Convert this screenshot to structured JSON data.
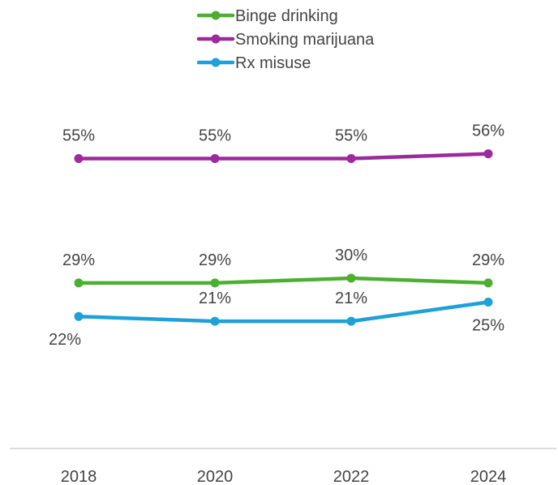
{
  "chart_data": {
    "type": "line",
    "title": "",
    "xlabel": "",
    "ylabel": "",
    "categories": [
      "2018",
      "2020",
      "2022",
      "2024"
    ],
    "legend_position": "top-center",
    "grid": false,
    "ylim": [
      0,
      65
    ],
    "series": [
      {
        "name": "Binge drinking",
        "color": "#4caf32",
        "values": [
          29,
          29,
          30,
          29
        ],
        "labels": [
          "29%",
          "29%",
          "30%",
          "29%"
        ]
      },
      {
        "name": "Smoking marijuana",
        "color": "#9c2a9c",
        "values": [
          55,
          55,
          55,
          56
        ],
        "labels": [
          "55%",
          "55%",
          "55%",
          "56%"
        ]
      },
      {
        "name": "Rx misuse",
        "color": "#1ea0d8",
        "values": [
          22,
          21,
          21,
          25
        ],
        "labels": [
          "22%",
          "21%",
          "21%",
          "25%"
        ]
      }
    ]
  }
}
